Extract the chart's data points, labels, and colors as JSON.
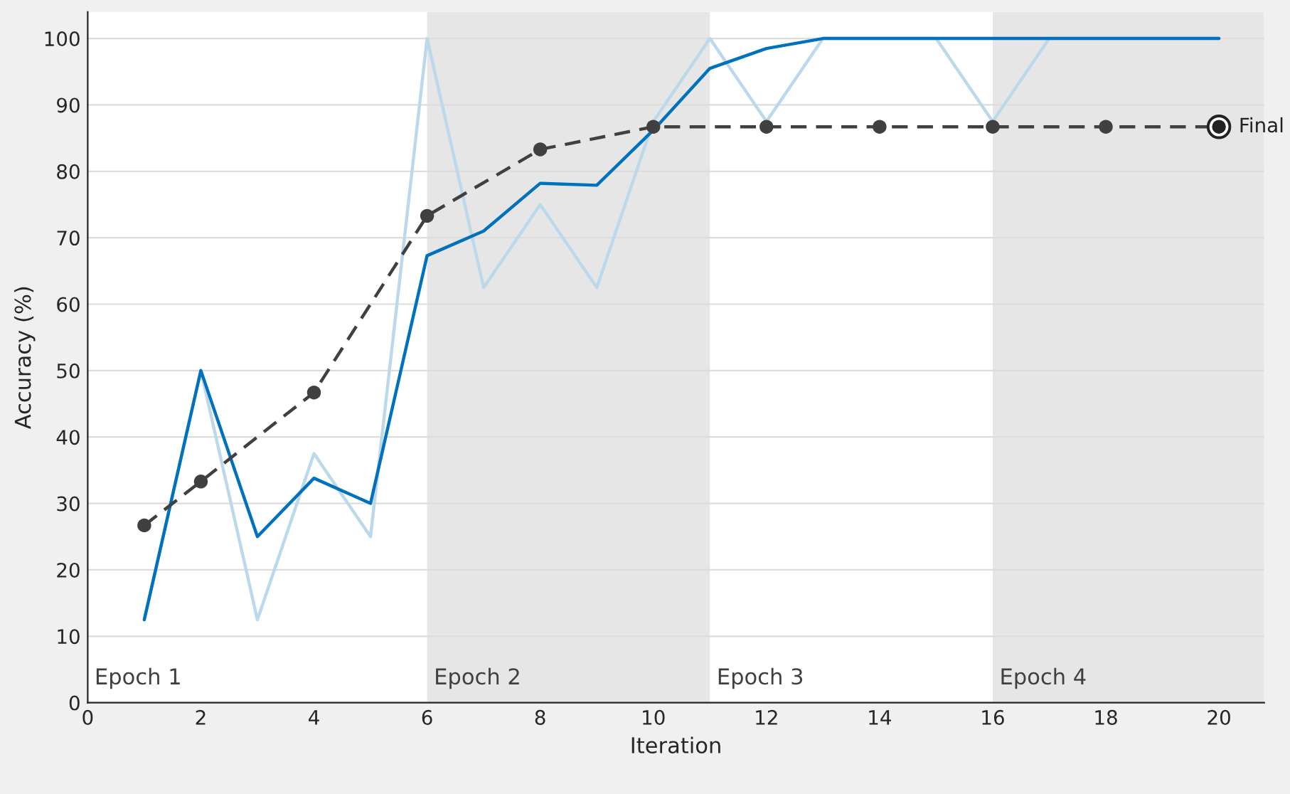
{
  "chart_data": {
    "type": "line",
    "xlabel": "Iteration",
    "ylabel": "Accuracy (%)",
    "xlim": [
      0,
      20.8
    ],
    "xticks": [
      0,
      2,
      4,
      6,
      8,
      10,
      12,
      14,
      16,
      18,
      20
    ],
    "ylim": [
      0,
      104
    ],
    "yticks": [
      0,
      10,
      20,
      30,
      40,
      50,
      60,
      70,
      80,
      90,
      100
    ],
    "grid": "y",
    "legend": false,
    "series": [
      {
        "color": "#bcd9ec",
        "marker": "none",
        "line_style": "solid",
        "x": [
          1,
          2,
          3,
          4,
          5,
          6,
          7,
          8,
          9,
          10,
          11,
          12,
          13,
          14,
          15,
          16,
          17,
          18,
          19,
          20
        ],
        "values": [
          12.5,
          50,
          12.5,
          37.5,
          25,
          100,
          62.5,
          75,
          62.5,
          87.5,
          100,
          87.5,
          100,
          100,
          100,
          87.5,
          100,
          100,
          100,
          100
        ]
      },
      {
        "color": "#0072bd",
        "marker": "none",
        "line_style": "solid",
        "x": [
          1,
          2,
          3,
          4,
          5,
          6,
          7,
          8,
          9,
          10,
          11,
          12,
          13,
          14,
          15,
          16,
          17,
          18,
          19,
          20
        ],
        "values": [
          12.5,
          50,
          25,
          33.8,
          30,
          67.3,
          71,
          78.2,
          77.9,
          86.2,
          95.5,
          98.5,
          100,
          100,
          100,
          100,
          100,
          100,
          100,
          100
        ]
      },
      {
        "color": "#404040",
        "marker": "circle",
        "line_style": "dashed",
        "x": [
          1,
          2,
          4,
          6,
          8,
          10,
          12,
          14,
          16,
          18,
          20
        ],
        "values": [
          26.7,
          33.3,
          46.7,
          73.3,
          83.3,
          86.7,
          86.7,
          86.7,
          86.7,
          86.7,
          86.7
        ]
      }
    ],
    "bands": [
      {
        "axis": "x",
        "from": 6,
        "to": 11,
        "label": "Epoch 2",
        "color": "#e6e6e6"
      },
      {
        "axis": "x",
        "from": 16,
        "to": 20.8,
        "label": "Epoch 4",
        "color": "#e6e6e6"
      }
    ],
    "annotations": [
      {
        "text": "Final",
        "x": 20,
        "y": 86.7
      },
      "Epoch 1",
      "Epoch 3"
    ]
  }
}
